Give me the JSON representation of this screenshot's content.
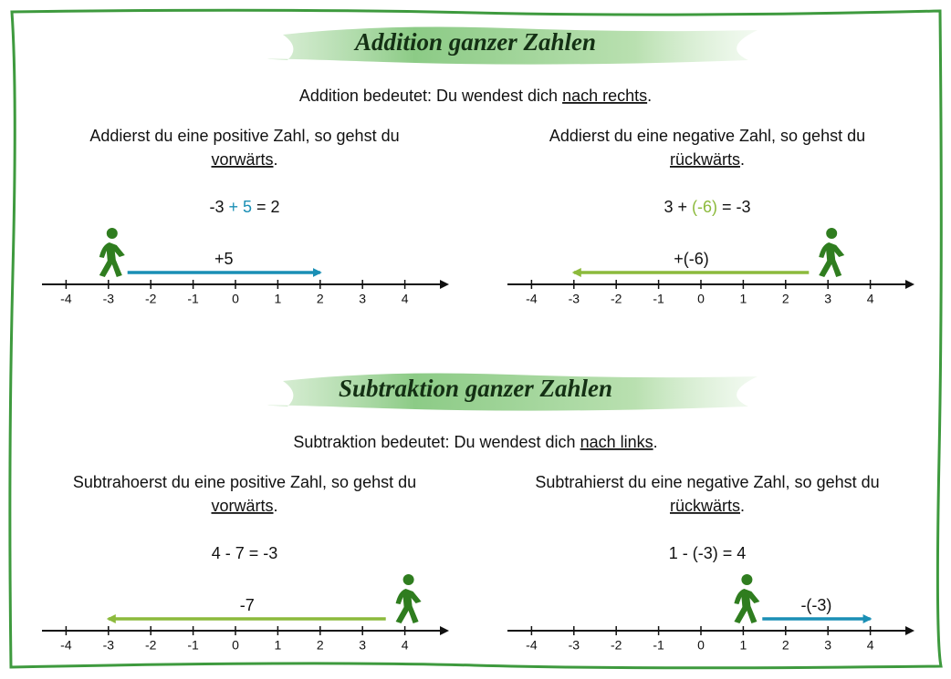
{
  "sections": [
    {
      "title": "Addition ganzer Zahlen",
      "rule": {
        "text": "Addition bedeutet: Du wendest dich ",
        "underlined": "nach rechts",
        "end": "."
      },
      "cases": [
        {
          "text": "Addierst du eine positive Zahl, so gehst du",
          "underlined": "vorwärts",
          "end": ".",
          "equation": [
            {
              "text": "-3 "
            },
            {
              "text": "+ 5",
              "color": "#1a8fb5"
            },
            {
              "text": " = 2"
            }
          ],
          "arrow": {
            "label": "+5",
            "color": "#1a8fb5",
            "from": -3,
            "to": 2
          }
        },
        {
          "text": "Addierst du eine negative Zahl, so gehst du",
          "underlined": "rückwärts",
          "end": ".",
          "equation": [
            {
              "text": "3 + "
            },
            {
              "text": "(-6)",
              "color": "#8cba3c"
            },
            {
              "text": " = -3"
            }
          ],
          "arrow": {
            "label": "+(-6)",
            "color": "#8cba3c",
            "from": 3,
            "to": -3
          }
        }
      ]
    },
    {
      "title": "Subtraktion ganzer Zahlen",
      "rule": {
        "text": "Subtraktion bedeutet: Du wendest dich ",
        "underlined": "nach links",
        "end": "."
      },
      "cases": [
        {
          "text": "Subtrahoerst du eine positive Zahl, so gehst du",
          "underlined": "vorwärts",
          "end": ".",
          "equation": [
            {
              "text": "4 - 7 = -3"
            }
          ],
          "arrow": {
            "label": "-7",
            "color": "#8cba3c",
            "from": 4,
            "to": -3
          }
        },
        {
          "text": "Subtrahierst du eine negative Zahl, so gehst du",
          "underlined": "rückwärts",
          "end": ".",
          "equation": [
            {
              "text": "1 - (-3) = 4"
            }
          ],
          "arrow": {
            "label": "-(-3)",
            "color": "#1a8fb5",
            "from": 1,
            "to": 4
          }
        }
      ]
    }
  ],
  "ticks": [
    -4,
    -3,
    -2,
    -1,
    0,
    1,
    2,
    3,
    4
  ]
}
